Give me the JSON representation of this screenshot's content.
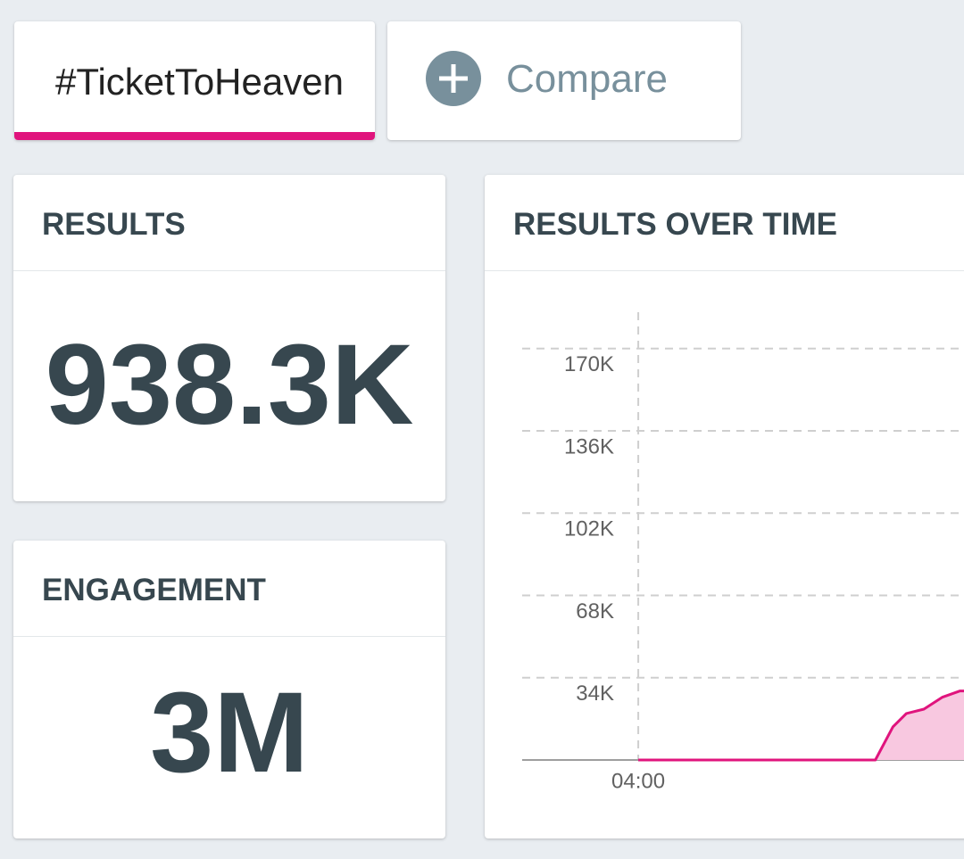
{
  "tabs": {
    "query": "#TicketToHeaven",
    "compare": "Compare"
  },
  "results": {
    "title": "RESULTS",
    "value": "938.3K"
  },
  "engagement": {
    "title": "ENGAGEMENT",
    "value": "3M"
  },
  "chart_data": {
    "type": "area",
    "title": "RESULTS OVER TIME",
    "x": [
      4.0,
      7.37,
      7.62,
      7.81,
      8.06,
      8.32,
      8.57,
      8.63
    ],
    "values": [
      0,
      0,
      13700,
      19200,
      21000,
      25900,
      28500,
      28500
    ],
    "color": "#e0147d",
    "fill": "#f8c8e0",
    "xlim": [
      2.35,
      8.63
    ],
    "xticks": [
      {
        "value": 4,
        "label": "04:00"
      }
    ],
    "ylim": [
      0,
      185000
    ],
    "yticks": [
      {
        "value": 34000,
        "label": "34K"
      },
      {
        "value": 68000,
        "label": "68K"
      },
      {
        "value": 102000,
        "label": "102K"
      },
      {
        "value": 136000,
        "label": "136K"
      },
      {
        "value": 170000,
        "label": "170K"
      }
    ],
    "grid": true
  }
}
